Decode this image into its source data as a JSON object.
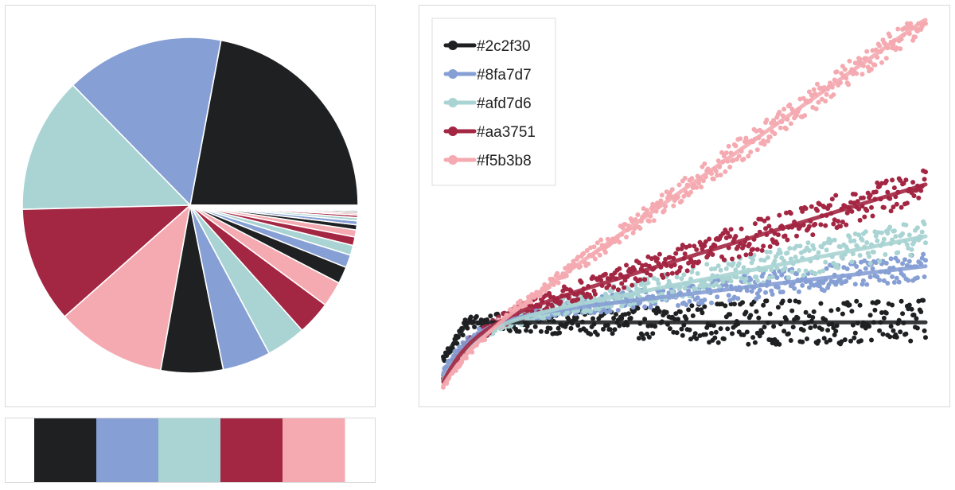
{
  "palette": [
    "#1e2022",
    "#869fd4",
    "#a9d4d3",
    "#a32643",
    "#f4aab0"
  ],
  "chart_data": [
    {
      "type": "pie",
      "title": "",
      "start_angle_deg": 0,
      "direction": "clockwise",
      "slice_colors": [
        "#1e2022",
        "#869fd4",
        "#a9d4d3",
        "#a32643",
        "#f4aab0"
      ],
      "values": [
        81,
        56,
        48,
        41,
        39,
        22,
        17,
        14,
        12,
        9,
        6,
        4.5,
        3.5,
        3,
        2.5,
        1.8,
        1.4,
        1.1,
        0.9,
        0.7,
        0.6,
        0.5,
        0.4,
        0.35,
        0.3,
        0.25,
        0.2,
        0.15
      ]
    },
    {
      "type": "swatches",
      "colors": [
        "#1e2022",
        "#869fd4",
        "#a9d4d3",
        "#a32643",
        "#f4aab0"
      ]
    },
    {
      "type": "scatter",
      "title": "",
      "xlabel": "",
      "ylabel": "",
      "xlim": [
        0,
        1
      ],
      "ylim": [
        0,
        1
      ],
      "legend": {
        "position": "top-left"
      },
      "series": [
        {
          "name": "#2c2f30",
          "color": "#1e2022",
          "trend_start": 0.177,
          "trend_end": 0.177,
          "spread": 0.06,
          "offset": 0.0
        },
        {
          "name": "#8fa7d7",
          "color": "#869fd4",
          "trend_start": 0.04,
          "trend_end": 0.245,
          "spread": 0.035,
          "offset": 0.012
        },
        {
          "name": "#afd7d6",
          "color": "#a9d4d3",
          "trend_start": 0.02,
          "trend_end": 0.36,
          "spread": 0.045,
          "offset": 0.008
        },
        {
          "name": "#aa3751",
          "color": "#a32643",
          "trend_start": 0.015,
          "trend_end": 0.55,
          "spread": 0.045,
          "offset": 0.005
        },
        {
          "name": "#f5b3b8",
          "color": "#f4aab0",
          "trend_start": 0.005,
          "trend_end": 0.93,
          "spread": 0.035,
          "offset": 0.0
        }
      ]
    }
  ]
}
